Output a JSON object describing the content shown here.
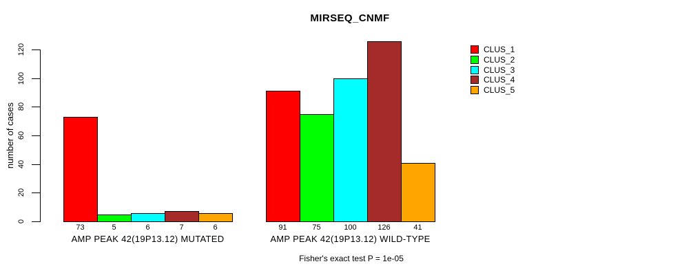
{
  "chart_data": {
    "type": "bar",
    "title": "MIRSEQ_CNMF",
    "ylabel": "number of cases",
    "xlabel": "",
    "ylim": [
      0,
      120
    ],
    "yticks": [
      0,
      20,
      40,
      60,
      80,
      100,
      120
    ],
    "grid": false,
    "legend_position": "right",
    "background": "#ffffff",
    "bar_border_color": "#000000",
    "categories": [
      "AMP PEAK 42(19P13.12) MUTATED",
      "AMP PEAK 42(19P13.12) WILD-TYPE"
    ],
    "series": [
      {
        "name": "CLUS_1",
        "color": "#ff0000",
        "values": [
          73,
          91
        ]
      },
      {
        "name": "CLUS_2",
        "color": "#00ff00",
        "values": [
          5,
          75
        ]
      },
      {
        "name": "CLUS_3",
        "color": "#00ffff",
        "values": [
          6,
          100
        ]
      },
      {
        "name": "CLUS_4",
        "color": "#a52a2a",
        "values": [
          7,
          126
        ]
      },
      {
        "name": "CLUS_5",
        "color": "#ffa500",
        "values": [
          6,
          41
        ]
      }
    ],
    "bar_value_labels_shown": true,
    "annotation": "Fisher's exact test P = 1e-05"
  }
}
